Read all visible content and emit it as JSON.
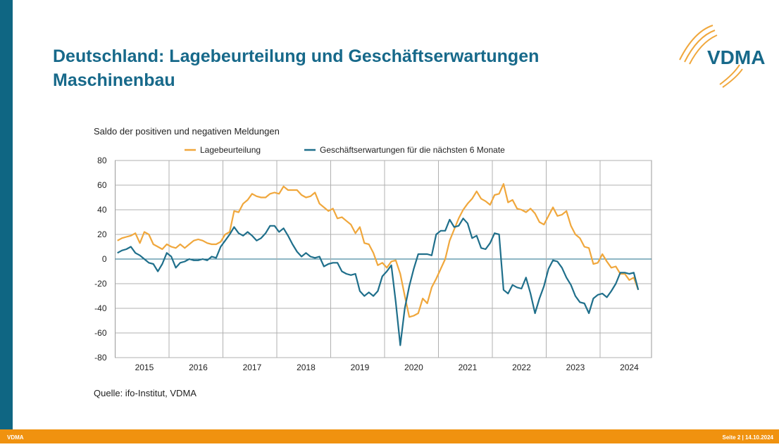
{
  "header": {
    "title_line1": "Deutschland: Lagebeurteilung und Geschäftserwartungen",
    "title_line2": "Maschinenbau",
    "logo": "VDMA"
  },
  "chart_data": {
    "type": "line",
    "subtitle": "Saldo der positiven und negativen Meldungen",
    "categories": [
      null,
      null,
      null,
      null,
      null,
      null,
      "2015",
      null,
      null,
      null,
      null,
      null,
      null,
      null,
      null,
      null,
      null,
      null,
      "2016",
      null,
      null,
      null,
      null,
      null,
      null,
      null,
      null,
      null,
      null,
      null,
      "2017",
      null,
      null,
      null,
      null,
      null,
      null,
      null,
      null,
      null,
      null,
      null,
      "2018",
      null,
      null,
      null,
      null,
      null,
      null,
      null,
      null,
      null,
      null,
      null,
      "2019",
      null,
      null,
      null,
      null,
      null,
      null,
      null,
      null,
      null,
      null,
      null,
      "2020",
      null,
      null,
      null,
      null,
      null,
      null,
      null,
      null,
      null,
      null,
      null,
      "2021",
      null,
      null,
      null,
      null,
      null,
      null,
      null,
      null,
      null,
      null,
      null,
      "2022",
      null,
      null,
      null,
      null,
      null,
      null,
      null,
      null,
      null,
      null,
      null,
      "2023",
      null,
      null,
      null,
      null,
      null,
      null,
      null,
      null,
      null,
      null,
      null,
      "2024",
      null,
      null
    ],
    "series": [
      {
        "name": "Lagebeurteilung",
        "color": "#f0a73c",
        "values": [
          15,
          17,
          18,
          19,
          21,
          13,
          22,
          20,
          12,
          10,
          8,
          12,
          10,
          9,
          12,
          9,
          12,
          15,
          16,
          15,
          13,
          12,
          12,
          14,
          20,
          22,
          39,
          38,
          45,
          48,
          53,
          51,
          50,
          50,
          53,
          54,
          53,
          59,
          56,
          56,
          56,
          52,
          50,
          51,
          54,
          45,
          42,
          39,
          41,
          33,
          34,
          31,
          28,
          21,
          26,
          13,
          12,
          5,
          -5,
          -3,
          -7,
          -2,
          -1,
          -12,
          -30,
          -47,
          -46,
          -44,
          -32,
          -36,
          -23,
          -16,
          -8,
          0,
          15,
          24,
          33,
          40,
          45,
          49,
          55,
          49,
          47,
          44,
          52,
          53,
          61,
          46,
          48,
          41,
          40,
          38,
          41,
          37,
          30,
          28,
          35,
          42,
          35,
          36,
          39,
          27,
          20,
          17,
          10,
          9,
          -4,
          -3,
          4,
          -2,
          -7,
          -6,
          -12,
          -12,
          -17,
          -15,
          -25
        ]
      },
      {
        "name": "Geschäftserwartungen für die nächsten 6 Monate",
        "color": "#1f6f8b",
        "values": [
          5,
          7,
          8,
          10,
          5,
          3,
          0,
          -3,
          -4,
          -10,
          -4,
          5,
          2,
          -7,
          -3,
          -2,
          0,
          -1,
          -1,
          0,
          -1,
          2,
          1,
          10,
          15,
          20,
          26,
          21,
          19,
          22,
          19,
          15,
          17,
          21,
          27,
          27,
          22,
          25,
          19,
          12,
          6,
          2,
          5,
          2,
          1,
          2,
          -6,
          -4,
          -3,
          -3,
          -10,
          -12,
          -13,
          -12,
          -26,
          -30,
          -27,
          -30,
          -26,
          -14,
          -10,
          -5,
          -35,
          -70,
          -40,
          -22,
          -8,
          4,
          4,
          4,
          3,
          20,
          23,
          23,
          32,
          26,
          27,
          33,
          29,
          17,
          19,
          9,
          8,
          13,
          21,
          20,
          -25,
          -28,
          -21,
          -23,
          -24,
          -15,
          -28,
          -44,
          -32,
          -22,
          -8,
          -1,
          -2,
          -7,
          -15,
          -21,
          -30,
          -35,
          -36,
          -44,
          -32,
          -29,
          -28,
          -31,
          -26,
          -20,
          -11,
          -11,
          -12,
          -11,
          -25
        ]
      }
    ],
    "ylim": [
      -80,
      80
    ],
    "yticks": [
      -80,
      -60,
      -40,
      -20,
      0,
      20,
      40,
      60,
      80
    ],
    "grid": true,
    "source": "Quelle: ifo-Institut, VDMA"
  },
  "footer": {
    "left": "VDMA",
    "right": "Seite 2 | 14.10.2024"
  }
}
